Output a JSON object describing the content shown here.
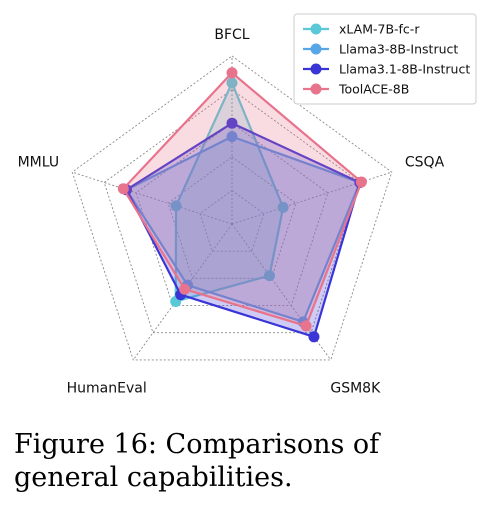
{
  "chart_data": {
    "type": "radar",
    "axes": [
      "BFCL",
      "CSQA",
      "GSM8K",
      "HumanEval",
      "MMLU"
    ],
    "rlim": [
      0,
      100
    ],
    "grid": true,
    "legend_position": "top-right",
    "series": [
      {
        "name": "xLAM-7B-fc-r",
        "color": "#5bc8d8",
        "values": [
          84,
          32,
          38,
          57,
          35
        ]
      },
      {
        "name": "Llama3-8B-Instruct",
        "color": "#56a6e8",
        "values": [
          52,
          80,
          72,
          45,
          66
        ]
      },
      {
        "name": "Llama3.1-8B-Instruct",
        "color": "#3a35d6",
        "values": [
          60,
          80,
          83,
          52,
          66
        ]
      },
      {
        "name": "ToolACE-8B",
        "color": "#e8738c",
        "values": [
          90,
          81,
          75,
          48,
          68
        ]
      }
    ]
  },
  "caption": {
    "text": "Figure 16: Comparisons of general capabilities."
  }
}
